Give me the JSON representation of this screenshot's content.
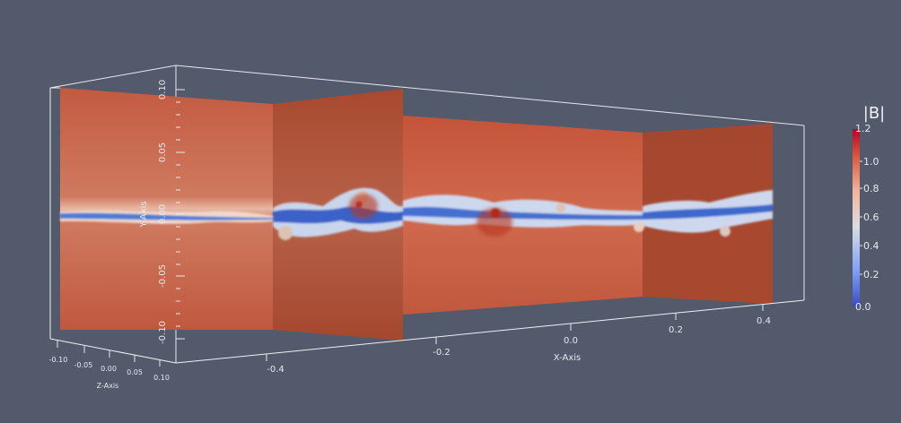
{
  "colorbar": {
    "title": "|B|",
    "ticks": [
      "1.2",
      "1.0",
      "0.8",
      "0.6",
      "0.4",
      "0.2",
      "0.0"
    ],
    "range": [
      0.0,
      1.2
    ],
    "colors": [
      "#3b4cc0",
      "#7da0f9",
      "#c9d7f0",
      "#f2cbb7",
      "#ee8468",
      "#b40426"
    ]
  },
  "axes": {
    "y_label": "Y-Axis",
    "y_ticks": [
      "0.10",
      "0.05",
      "0.00",
      "-0.05",
      "-0.10"
    ],
    "x_label": "X-Axis",
    "x_ticks": [
      "-0.4",
      "-0.2",
      "0.0",
      "0.2",
      "0.4"
    ],
    "z_label": "Z-Axis",
    "z_ticks": [
      "-0.10",
      "-0.05",
      "0.00",
      "0.05",
      "0.10"
    ]
  },
  "colors": {
    "background": "#525a6c",
    "field_high": "#c0583e",
    "field_shadow": "#a94b36",
    "sheet_low": "#3b6fd0",
    "outline": "#ffffff"
  }
}
